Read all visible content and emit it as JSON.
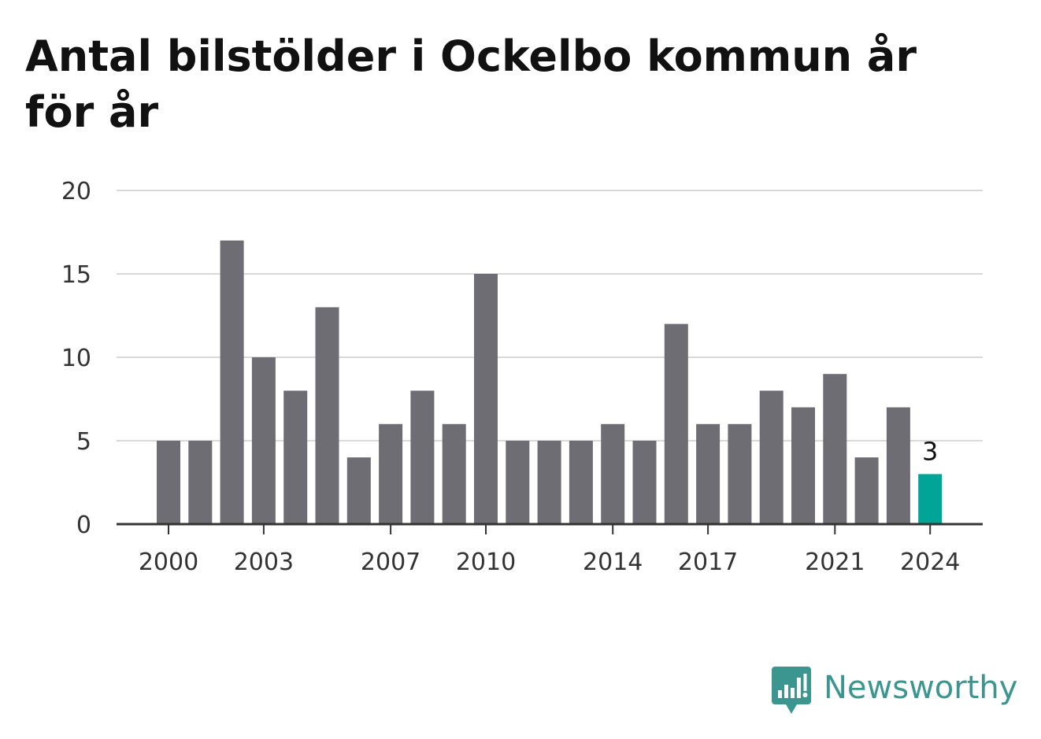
{
  "title": "Antal bilstölder i Ockelbo kommun år för år",
  "brand": {
    "name": "Newsworthy",
    "icon": "newsworthy-logo-icon"
  },
  "colors": {
    "bar": "#6e6d73",
    "highlight": "#00a597",
    "grid": "#d9d9d9",
    "axis": "#333333",
    "brand": "#3a968f"
  },
  "chart_data": {
    "type": "bar",
    "title": "Antal bilstölder i Ockelbo kommun år för år",
    "xlabel": "",
    "ylabel": "",
    "categories": [
      2000,
      2001,
      2002,
      2003,
      2004,
      2005,
      2006,
      2007,
      2008,
      2009,
      2010,
      2011,
      2012,
      2013,
      2014,
      2015,
      2016,
      2017,
      2018,
      2019,
      2020,
      2021,
      2022,
      2023,
      2024
    ],
    "values": [
      5,
      5,
      17,
      10,
      8,
      13,
      4,
      6,
      8,
      6,
      15,
      5,
      5,
      5,
      6,
      5,
      12,
      6,
      6,
      8,
      7,
      9,
      4,
      7,
      3
    ],
    "x_tick_labels": [
      "2000",
      "2003",
      "2007",
      "2010",
      "2014",
      "2017",
      "2021",
      "2024"
    ],
    "y_ticks": [
      0,
      5,
      10,
      15,
      20
    ],
    "ylim": [
      0,
      20
    ],
    "grid": true,
    "legend": "none",
    "highlight": {
      "category": 2024,
      "value": 3,
      "label": "3"
    }
  }
}
